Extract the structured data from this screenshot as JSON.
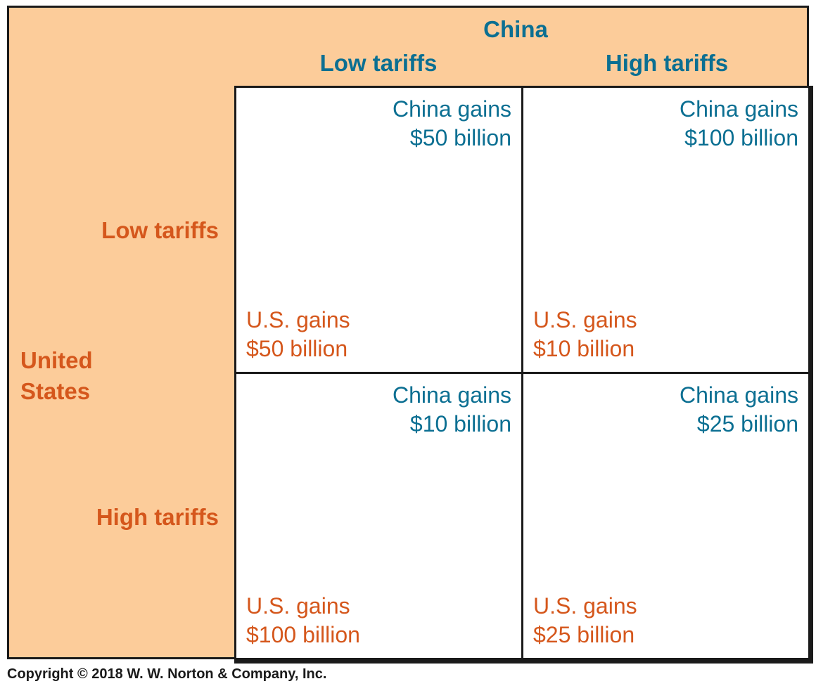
{
  "header": {
    "column_player": "China",
    "row_player_line1": "United",
    "row_player_line2": "States"
  },
  "columns": [
    {
      "label": "Low tariffs"
    },
    {
      "label": "High tariffs"
    }
  ],
  "rows": [
    {
      "label": "Low tariffs"
    },
    {
      "label": "High tariffs"
    }
  ],
  "cells": [
    {
      "china_line1": "China gains",
      "china_line2": "$50 billion",
      "us_line1": "U.S. gains",
      "us_line2": "$50 billion"
    },
    {
      "china_line1": "China gains",
      "china_line2": "$100 billion",
      "us_line1": "U.S. gains",
      "us_line2": "$10 billion"
    },
    {
      "china_line1": "China gains",
      "china_line2": "$10 billion",
      "us_line1": "U.S. gains",
      "us_line2": "$100 billion"
    },
    {
      "china_line1": "China gains",
      "china_line2": "$25 billion",
      "us_line1": "U.S. gains",
      "us_line2": "$25 billion"
    }
  ],
  "colors": {
    "china": "#0b6f92",
    "us": "#d5571c",
    "background": "#fccc9a"
  },
  "footer": {
    "copyright": "Copyright © 2018 W. W. Norton & Company, Inc."
  }
}
